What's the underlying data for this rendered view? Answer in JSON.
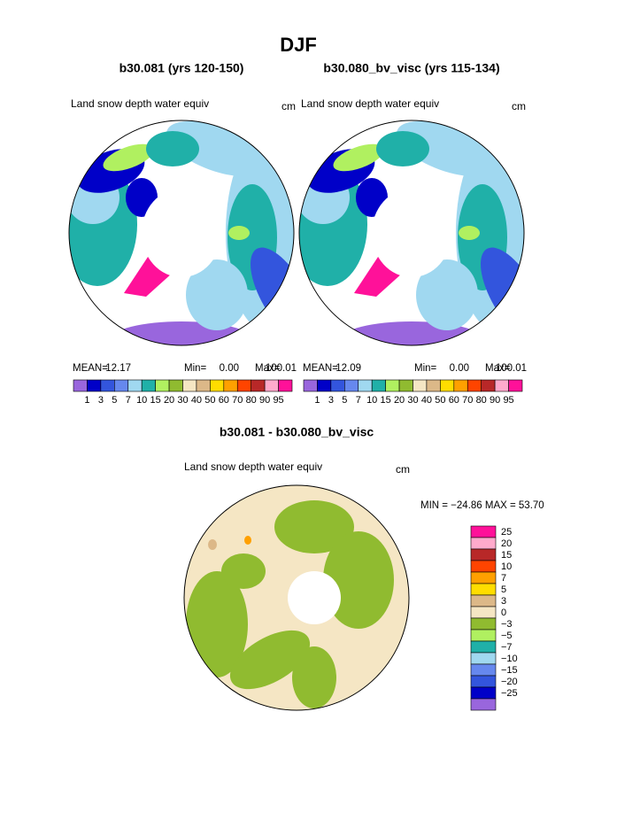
{
  "title": "DJF",
  "panels": [
    {
      "title": "b30.081 (yrs 120-150)",
      "variable": "Land snow depth water equiv",
      "units": "cm",
      "stats": [
        {
          "label": "MEAN=",
          "value": "12.17"
        },
        {
          "label": "Min=",
          "value": "0.00"
        },
        {
          "label": "Max=",
          "value": "100.01"
        }
      ]
    },
    {
      "title": "b30.080_bv_visc (yrs 115-134)",
      "variable": "Land snow depth water equiv",
      "units": "cm",
      "stats": [
        {
          "label": "MEAN=",
          "value": "12.09"
        },
        {
          "label": "Min=",
          "value": "0.00"
        },
        {
          "label": "Max=",
          "value": "100.01"
        }
      ]
    }
  ],
  "colorbar": {
    "labels": [
      "1",
      "3",
      "5",
      "7",
      "10",
      "15",
      "20",
      "30",
      "40",
      "50",
      "60",
      "70",
      "80",
      "90",
      "95"
    ],
    "colors": [
      "#9966dd",
      "#0000c8",
      "#3355dd",
      "#6688ee",
      "#a0d8f0",
      "#20b0a8",
      "#b0f060",
      "#90bb30",
      "#f5e6c4",
      "#dcb888",
      "#ffdd00",
      "#ffa000",
      "#ff4400",
      "#b82828",
      "#ffaacc",
      "#ff1199"
    ]
  },
  "difference": {
    "title": "b30.081 - b30.080_bv_visc",
    "variable": "Land snow depth water equiv",
    "units": "cm",
    "range_text": "MIN = −24.86 MAX =  53.70",
    "colorbar": {
      "labels": [
        "25",
        "20",
        "15",
        "10",
        "7",
        "5",
        "3",
        "0",
        "−3",
        "−5",
        "−7",
        "−10",
        "−15",
        "−20",
        "−25"
      ],
      "colors": [
        "#ff1199",
        "#ffaacc",
        "#b82828",
        "#ff4400",
        "#ffa000",
        "#ffdd00",
        "#dcb888",
        "#f5e6c4",
        "#90bb30",
        "#b0f060",
        "#20b0a8",
        "#a0d8f0",
        "#6688ee",
        "#3355dd",
        "#0000c8",
        "#9966dd"
      ]
    }
  }
}
